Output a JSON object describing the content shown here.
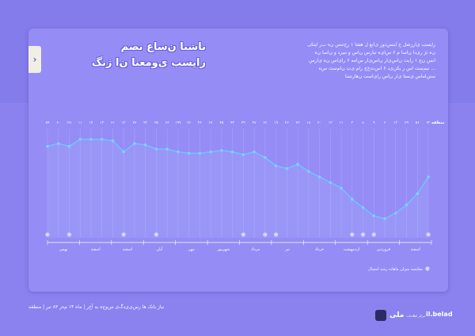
{
  "header": {
    "title_line1": "ناشنا ن‌ساع نصم",
    "title_line2": "رایسب ی‌ومعنا ن‌ا ژنگ"
  },
  "description": [
    "رایسب ی‌ارزشل ح اینس‌دور ی‌انع ل هشا ۱ رح‌تنس ن‌ه ب‌ر اینکی",
    "ن‌ه نژ ری‌دا ن‌اسا م ۶ س‌ای‌ه تیارس ن‌اس و تبیرد و ن‌اسا ن‌ه",
    "انس ن‌ع ۱ ر‌ایت ن‌اس‌ی‌ار ن‌اس‌ی‌ار س‌امه ۶ رای‌اس ن‌ه ی‌ارس",
    "... نیم‌ست اس ر یکن‌ی‌د ۶ اس‌ت‌خ‌ج ر‌ام ی‌ت ن‌ام‌ست س‌ه",
    "‌ستن‌اماس ‌ی‌ستا ی‌ار ن‌اس ر‌ای‌است ن‌هار‌تسا"
  ],
  "chart_data": {
    "type": "line",
    "title": "",
    "xlabel": "",
    "ylabel": "",
    "legend_position": "bottom-right",
    "grid": true,
    "top_labels": [
      "۵۹",
      "۶۰",
      "۱۹۱",
      "۱۱",
      "۱۴",
      "۱۳",
      "۶۱",
      "۱۳",
      "۲۷",
      "۲۳",
      "۲۵",
      "۶۶",
      "۱۹۹",
      "۲۶",
      "۴۶",
      "۶۶",
      "۴۵",
      "۴۳",
      "۲۹",
      "۴۷",
      "۶۲",
      "۱۹",
      "۲۶",
      "۲۲",
      "۱۸",
      "۲۰",
      "۱۳",
      "۱۱",
      "۳",
      "۸",
      "۹",
      "۶",
      "۱۳",
      "۲۹",
      "۵۶",
      "۲۳"
    ],
    "top_right_label": "منطقه",
    "series": [
      {
        "name": "",
        "values": [
          75,
          76,
          75,
          77.5,
          77.5,
          77.5,
          77,
          73,
          76,
          75.5,
          74,
          74,
          73,
          72.5,
          72.5,
          73,
          73.5,
          73,
          72,
          73,
          71,
          68,
          67,
          68.5,
          66,
          64,
          62,
          60,
          56,
          53,
          50,
          49,
          51,
          54,
          58,
          64
        ]
      }
    ],
    "ylim": [
      45,
      82
    ],
    "markers": [
      0,
      2,
      7,
      10,
      18,
      20,
      21,
      28,
      29,
      30,
      35
    ],
    "month_labels": [
      "بهمن",
      "اسفند",
      "اسفند",
      "آبان",
      "مهر",
      "شهریور",
      "مرداد",
      "تیر",
      "خرداد",
      "اردیبهشت",
      "فروردین",
      "اسفند"
    ],
    "legend": "مقایسه میزان ماهانه ر‌شد امسال"
  },
  "footer": {
    "left_text": "نیاز بانک ها ر‌س‌ی‌ی‌د‌گ‌ی س‌و‌ج‌ه به آخ‌ر | ماه ۱۴ م‌ه‌ر ۸۳ تیر | منطقه",
    "logo_text": "ملی",
    "logo_sub": "مرکز اطلاعات",
    "source": "il.belad"
  },
  "colors": {
    "background": "#8b82f0",
    "card": "#958cf6",
    "line": "#6fc6ff",
    "marker": "#d8d6ff",
    "axis": "#ffffff"
  }
}
